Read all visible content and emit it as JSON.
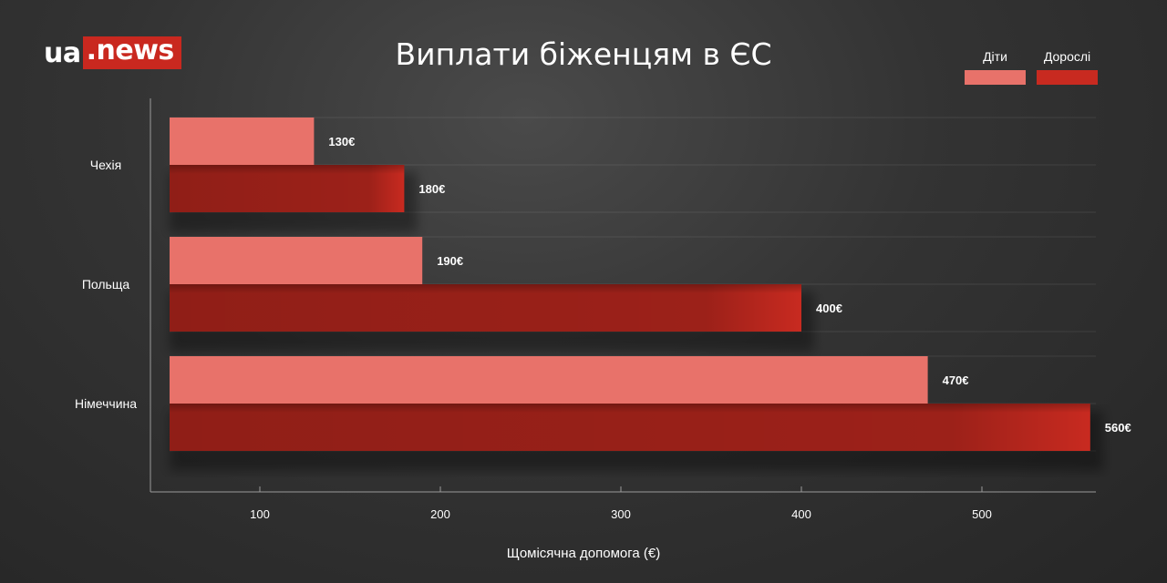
{
  "brand": {
    "logo_left": "ua",
    "logo_dot": ".",
    "logo_right": "news"
  },
  "colors": {
    "kids": "#e8726a",
    "adults": "#c82a20",
    "logo_bg": "#c9281f"
  },
  "chart_data": {
    "type": "bar",
    "orientation": "horizontal",
    "title": "Виплати біженцям в ЄС",
    "xlabel": "Щомісячна допомога (€)",
    "ylabel": "",
    "categories": [
      "Чехія",
      "Польща",
      "Німеччина"
    ],
    "series": [
      {
        "name": "Діти",
        "values": [
          130,
          190,
          470
        ],
        "labels": [
          "130€",
          "190€",
          "470€"
        ]
      },
      {
        "name": "Дорослі",
        "values": [
          180,
          400,
          560
        ],
        "labels": [
          "180€",
          "400€",
          "560€"
        ]
      }
    ],
    "xticks": [
      100,
      200,
      300,
      400,
      500
    ],
    "grid": true,
    "legend_position": "top-right"
  }
}
